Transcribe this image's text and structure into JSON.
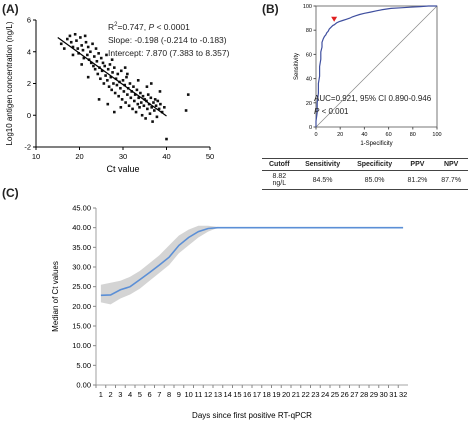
{
  "panels": {
    "a_label": "(A)",
    "b_label": "(B)",
    "c_label": "(C)"
  },
  "chart_data": [
    {
      "type": "scatter",
      "title": "",
      "xlabel": "Ct value",
      "ylabel": "Log10 antigen concentration (ng/L)",
      "xlim": [
        10,
        50
      ],
      "ylim": [
        -2,
        6
      ],
      "xticks": [
        "10",
        "20",
        "30",
        "40",
        "50"
      ],
      "yticks": [
        "-2",
        "0",
        "2",
        "4",
        "6"
      ],
      "annotations": {
        "r2_prefix": "R",
        "r2_sup": "2",
        "r2_rest": "=0.747, ",
        "p_italic": "P",
        "p_rest": " < 0.0001",
        "slope": "Slope: -0.198 (-0.214 to -0.183)",
        "intercept": "Intercept: 7.870 (7.383 to 8.357)"
      },
      "regression": {
        "slope": -0.198,
        "intercept": 7.87,
        "x_range": [
          15,
          40
        ]
      },
      "points": [
        [
          15.8,
          4.5
        ],
        [
          16.5,
          4.2
        ],
        [
          17.2,
          4.8
        ],
        [
          17.8,
          5.0
        ],
        [
          18.1,
          4.6
        ],
        [
          18.5,
          4.3
        ],
        [
          19.0,
          5.1
        ],
        [
          19.3,
          4.7
        ],
        [
          19.6,
          4.2
        ],
        [
          19.8,
          3.9
        ],
        [
          20.2,
          4.9
        ],
        [
          20.5,
          4.4
        ],
        [
          20.8,
          4.1
        ],
        [
          21.0,
          3.6
        ],
        [
          21.3,
          5.0
        ],
        [
          21.5,
          4.6
        ],
        [
          21.8,
          3.8
        ],
        [
          22.0,
          4.3
        ],
        [
          22.2,
          3.5
        ],
        [
          22.5,
          4.0
        ],
        [
          22.7,
          3.3
        ],
        [
          23.0,
          4.5
        ],
        [
          23.2,
          3.1
        ],
        [
          23.4,
          3.7
        ],
        [
          23.6,
          2.9
        ],
        [
          23.8,
          4.2
        ],
        [
          24.0,
          3.4
        ],
        [
          24.2,
          2.6
        ],
        [
          24.4,
          3.9
        ],
        [
          24.6,
          3.0
        ],
        [
          24.8,
          2.3
        ],
        [
          25.0,
          3.6
        ],
        [
          25.2,
          2.8
        ],
        [
          25.4,
          3.3
        ],
        [
          25.6,
          2.0
        ],
        [
          25.8,
          3.1
        ],
        [
          26.0,
          2.5
        ],
        [
          26.2,
          3.8
        ],
        [
          26.4,
          2.2
        ],
        [
          26.6,
          2.9
        ],
        [
          26.8,
          1.8
        ],
        [
          27.0,
          3.2
        ],
        [
          27.2,
          2.4
        ],
        [
          27.4,
          1.6
        ],
        [
          27.6,
          2.7
        ],
        [
          27.8,
          2.0
        ],
        [
          28.0,
          3.0
        ],
        [
          28.2,
          1.4
        ],
        [
          28.4,
          2.3
        ],
        [
          28.6,
          1.9
        ],
        [
          28.8,
          2.6
        ],
        [
          29.0,
          1.2
        ],
        [
          29.2,
          2.1
        ],
        [
          29.4,
          1.7
        ],
        [
          29.6,
          2.8
        ],
        [
          29.8,
          1.0
        ],
        [
          30.0,
          2.2
        ],
        [
          30.2,
          1.5
        ],
        [
          30.4,
          1.9
        ],
        [
          30.6,
          0.8
        ],
        [
          30.8,
          2.4
        ],
        [
          31.0,
          1.3
        ],
        [
          31.2,
          1.7
        ],
        [
          31.4,
          0.6
        ],
        [
          31.6,
          2.0
        ],
        [
          31.8,
          1.1
        ],
        [
          32.0,
          1.5
        ],
        [
          32.2,
          0.4
        ],
        [
          32.4,
          1.8
        ],
        [
          32.6,
          0.9
        ],
        [
          32.8,
          1.3
        ],
        [
          33.0,
          0.2
        ],
        [
          33.2,
          1.6
        ],
        [
          33.4,
          0.7
        ],
        [
          33.6,
          1.1
        ],
        [
          33.8,
          0.5
        ],
        [
          34.0,
          1.4
        ],
        [
          34.2,
          0.8
        ],
        [
          34.4,
          0.0
        ],
        [
          34.6,
          1.2
        ],
        [
          34.8,
          0.6
        ],
        [
          35.0,
          1.0
        ],
        [
          35.2,
          -0.2
        ],
        [
          35.4,
          0.9
        ],
        [
          35.6,
          0.4
        ],
        [
          35.8,
          1.3
        ],
        [
          36.0,
          0.7
        ],
        [
          36.2,
          0.1
        ],
        [
          36.4,
          1.1
        ],
        [
          36.6,
          0.5
        ],
        [
          36.8,
          -0.4
        ],
        [
          37.0,
          0.8
        ],
        [
          37.2,
          0.3
        ],
        [
          37.4,
          1.0
        ],
        [
          37.6,
          0.6
        ],
        [
          37.8,
          -0.1
        ],
        [
          38.0,
          0.9
        ],
        [
          38.3,
          0.4
        ],
        [
          38.6,
          0.7
        ],
        [
          39.0,
          0.2
        ],
        [
          39.5,
          0.5
        ],
        [
          40.0,
          -1.5
        ],
        [
          44.5,
          0.3
        ],
        [
          45.0,
          1.3
        ],
        [
          24.5,
          1.0
        ],
        [
          26.5,
          0.7
        ],
        [
          28.0,
          0.2
        ],
        [
          29.5,
          0.5
        ],
        [
          31.0,
          2.6
        ],
        [
          33.5,
          2.2
        ],
        [
          35.5,
          1.8
        ],
        [
          38.5,
          1.5
        ],
        [
          22.0,
          2.4
        ],
        [
          20.5,
          3.2
        ],
        [
          27.5,
          3.5
        ],
        [
          30.5,
          3.0
        ],
        [
          18.5,
          3.8
        ],
        [
          36.5,
          2.0
        ]
      ]
    },
    {
      "type": "line",
      "title": "",
      "xlabel": "1-Specificity",
      "ylabel": "Sensitivity",
      "xlim": [
        0,
        100
      ],
      "ylim": [
        0,
        100
      ],
      "xticks": [
        "0",
        "20",
        "40",
        "60",
        "80",
        "100"
      ],
      "yticks": [
        "0",
        "20",
        "40",
        "60",
        "80",
        "100"
      ],
      "auc_text": "AUC=0.921, 95% CI 0.890-0.946",
      "p_italic": "P",
      "p_rest": " < 0.001",
      "roc": [
        [
          0,
          0
        ],
        [
          0,
          5
        ],
        [
          1,
          12
        ],
        [
          1,
          20
        ],
        [
          2,
          28
        ],
        [
          2,
          36
        ],
        [
          3,
          42
        ],
        [
          3,
          50
        ],
        [
          4,
          56
        ],
        [
          4,
          62
        ],
        [
          5,
          66
        ],
        [
          5,
          70
        ],
        [
          6,
          73
        ],
        [
          7,
          75
        ],
        [
          8,
          76
        ],
        [
          9,
          78
        ],
        [
          10,
          79
        ],
        [
          11,
          81
        ],
        [
          12,
          82
        ],
        [
          13,
          83
        ],
        [
          14,
          84
        ],
        [
          15,
          84.5
        ],
        [
          17,
          86
        ],
        [
          19,
          87
        ],
        [
          22,
          88
        ],
        [
          25,
          89
        ],
        [
          28,
          90
        ],
        [
          30,
          91
        ],
        [
          33,
          92
        ],
        [
          36,
          93
        ],
        [
          40,
          94
        ],
        [
          45,
          95
        ],
        [
          50,
          96
        ],
        [
          55,
          97
        ],
        [
          62,
          98
        ],
        [
          70,
          98.5
        ],
        [
          78,
          99
        ],
        [
          86,
          99.5
        ],
        [
          93,
          100
        ],
        [
          100,
          100
        ]
      ],
      "cutoff_marker": [
        15,
        84.5
      ],
      "table": {
        "headers": [
          "Cutoff",
          "Sensitivity",
          "Specificity",
          "PPV",
          "NPV"
        ],
        "rows": [
          [
            "8.82\nng/L",
            "84.5%",
            "85.0%",
            "81.2%",
            "87.7%"
          ]
        ]
      }
    },
    {
      "type": "line",
      "title": "",
      "xlabel": "Days since first positive RT-qPCR",
      "ylabel": "Median of Ct values",
      "ylim": [
        0,
        45
      ],
      "yticks": [
        "0.00",
        "5.00",
        "10.00",
        "15.00",
        "20.00",
        "25.00",
        "30.00",
        "35.00",
        "40.00",
        "45.00"
      ],
      "categories": [
        "1",
        "2",
        "3",
        "4",
        "5",
        "6",
        "7",
        "8",
        "9",
        "10",
        "11",
        "12",
        "13",
        "14",
        "15",
        "16",
        "17",
        "18",
        "19",
        "20",
        "21",
        "22",
        "23",
        "24",
        "25",
        "26",
        "27",
        "28",
        "29",
        "30",
        "31",
        "32"
      ],
      "series": [
        {
          "values": [
            22.8,
            22.9,
            24.2,
            25.0,
            26.8,
            28.6,
            30.5,
            32.5,
            35.5,
            37.5,
            39.0,
            39.8,
            40.0,
            40.0,
            40.0,
            40.0,
            40.0,
            40.0,
            40.0,
            40.0,
            40.0,
            40.0,
            40.0,
            40.0,
            40.0,
            40.0,
            40.0,
            40.0,
            40.0,
            40.0,
            40.0,
            40.0
          ],
          "lower": [
            21.0,
            20.5,
            22.0,
            23.0,
            24.5,
            26.5,
            28.5,
            30.5,
            33.5,
            35.5,
            37.5,
            39.0,
            40.0,
            40.0,
            40.0,
            40.0,
            40.0,
            40.0,
            40.0,
            40.0,
            40.0,
            40.0,
            40.0,
            40.0,
            40.0,
            40.0,
            40.0,
            40.0,
            40.0,
            40.0,
            40.0,
            40.0
          ],
          "upper": [
            25.5,
            26.0,
            26.5,
            27.5,
            29.0,
            31.0,
            33.0,
            35.5,
            38.0,
            39.5,
            40.5,
            40.5,
            40.2,
            40.0,
            40.0,
            40.0,
            40.0,
            40.0,
            40.0,
            40.0,
            40.0,
            40.0,
            40.0,
            40.0,
            40.0,
            40.0,
            40.0,
            40.0,
            40.0,
            40.0,
            40.0,
            40.0
          ]
        }
      ]
    }
  ],
  "colors": {
    "roc_line": "#3f4f9f",
    "marker": "#e02020",
    "median_line": "#5b8fd6",
    "band": "#d4d4d4"
  }
}
